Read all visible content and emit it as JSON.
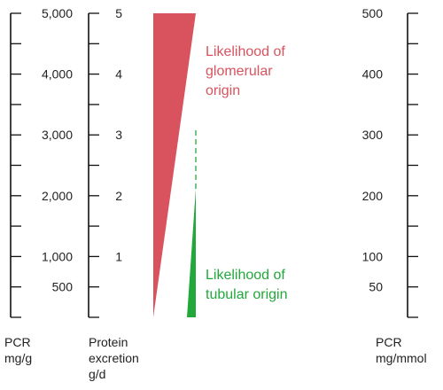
{
  "colors": {
    "glomerular": "#d9535e",
    "tubular": "#22a83a",
    "axis": "#111111",
    "text": "#222222"
  },
  "axes": {
    "pcr_mg_per_g": {
      "caption": [
        "PCR",
        "mg/g"
      ],
      "min": 0,
      "max": 5000,
      "major_ticks": [
        1000,
        2000,
        3000,
        4000,
        5000
      ],
      "minor_ticks": [
        500,
        1500,
        2500,
        3500,
        4500
      ],
      "labels": [
        {
          "value": 5000,
          "text": "5,000"
        },
        {
          "value": 4000,
          "text": "4,000"
        },
        {
          "value": 3000,
          "text": "3,000"
        },
        {
          "value": 2000,
          "text": "2,000"
        },
        {
          "value": 1000,
          "text": "1,000"
        },
        {
          "value": 500,
          "text": "500"
        }
      ]
    },
    "protein_excretion_g_per_d": {
      "caption": [
        "Protein",
        "excretion",
        "g/d"
      ],
      "min": 0,
      "max": 5,
      "major_ticks": [
        1,
        2,
        3,
        4,
        5
      ],
      "minor_ticks": [
        0.5,
        1.5,
        2.5,
        3.5,
        4.5
      ],
      "labels": [
        {
          "value": 5,
          "text": "5"
        },
        {
          "value": 4,
          "text": "4"
        },
        {
          "value": 3,
          "text": "3"
        },
        {
          "value": 2,
          "text": "2"
        },
        {
          "value": 1,
          "text": "1"
        }
      ]
    },
    "pcr_mg_per_mmol": {
      "caption": [
        "PCR",
        "mg/mmol"
      ],
      "min": 0,
      "max": 500,
      "major_ticks": [
        100,
        200,
        300,
        400,
        500
      ],
      "minor_ticks": [
        50,
        150,
        250,
        350,
        450
      ],
      "labels": [
        {
          "value": 500,
          "text": "500"
        },
        {
          "value": 400,
          "text": "400"
        },
        {
          "value": 300,
          "text": "300"
        },
        {
          "value": 200,
          "text": "200"
        },
        {
          "value": 100,
          "text": "100"
        },
        {
          "value": 50,
          "text": "50"
        }
      ]
    }
  },
  "wedges": {
    "glomerular": {
      "label": [
        "Likelihood of",
        "glomerular",
        "origin"
      ],
      "range_g_per_d": [
        0,
        5
      ]
    },
    "tubular": {
      "label": [
        "Likelihood of",
        "tubular origin"
      ],
      "range_g_per_d": [
        0,
        2
      ],
      "dashed_to_g_per_d": 3
    }
  }
}
